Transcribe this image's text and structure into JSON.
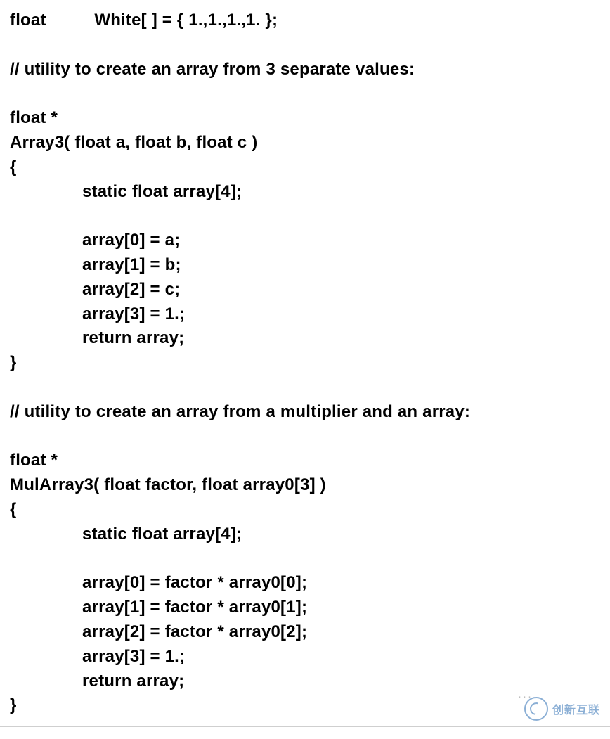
{
  "code": {
    "lines": [
      "float          White[ ] = { 1.,1.,1.,1. };",
      "",
      "// utility to create an array from 3 separate values:",
      "",
      "float *",
      "Array3( float a, float b, float c )",
      "{",
      "               static float array[4];",
      "",
      "               array[0] = a;",
      "               array[1] = b;",
      "               array[2] = c;",
      "               array[3] = 1.;",
      "               return array;",
      "}",
      "",
      "// utility to create an array from a multiplier and an array:",
      "",
      "float *",
      "MulArray3( float factor, float array0[3] )",
      "{",
      "               static float array[4];",
      "",
      "               array[0] = factor * array0[0];",
      "               array[1] = factor * array0[1];",
      "               array[2] = factor * array0[2];",
      "               array[3] = 1.;",
      "               return array;",
      "}"
    ]
  },
  "style": {
    "font_family": "Arial",
    "font_size_pt": 18,
    "font_weight": 700,
    "text_color": "#000000",
    "background_color": "#ffffff",
    "line_height": 1.45
  },
  "watermark": {
    "brand_text": "创新互联",
    "faint_text": "···",
    "brand_color": "#2e6fb4"
  }
}
